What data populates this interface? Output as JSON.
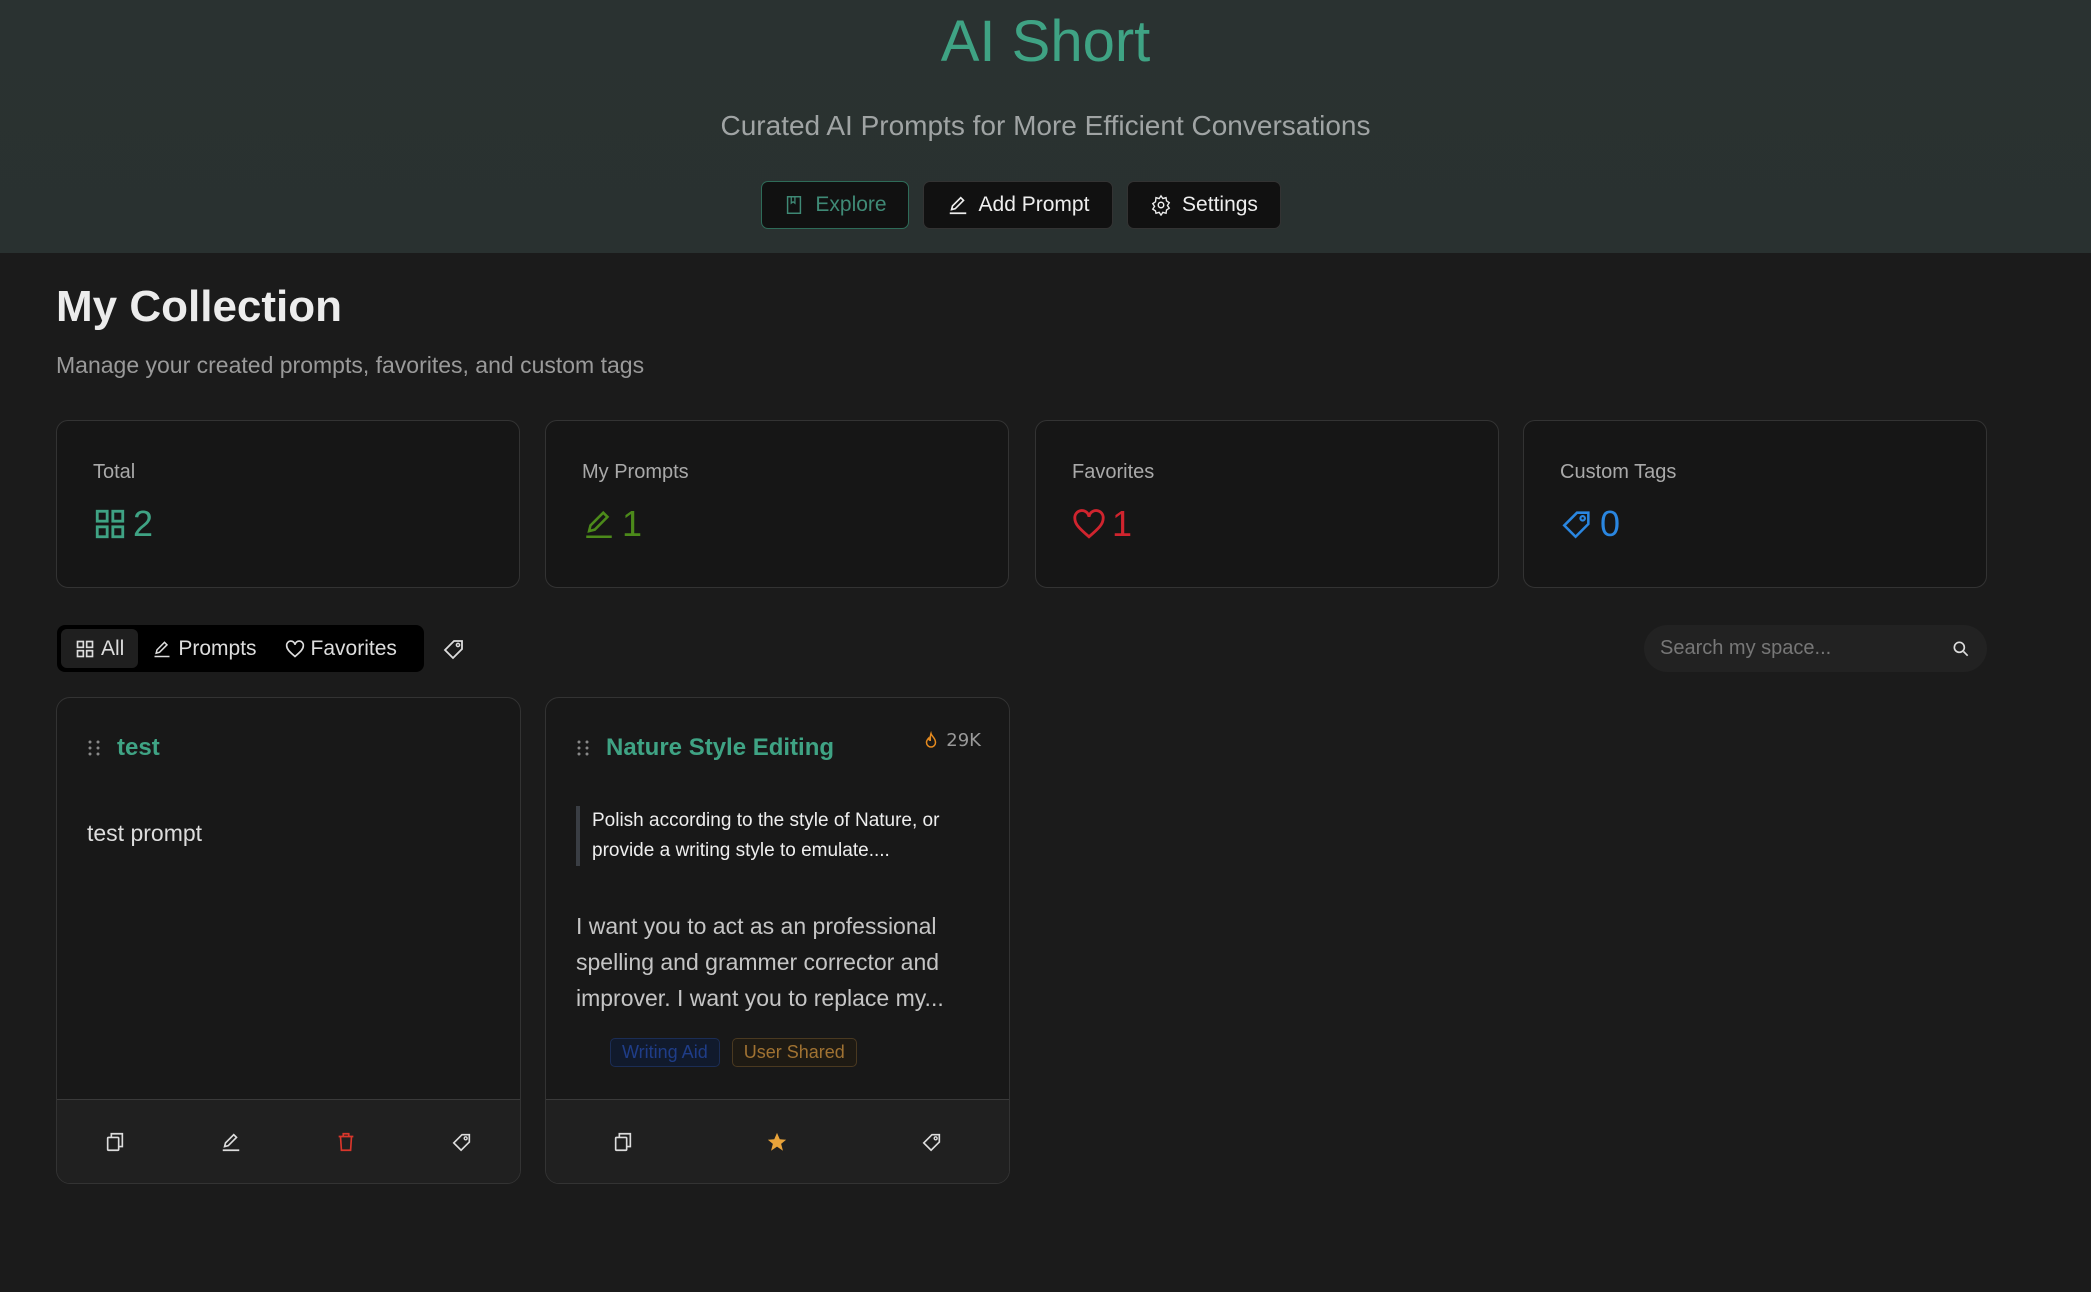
{
  "header": {
    "title": "AI Short",
    "subtitle": "Curated AI Prompts for More Efficient Conversations",
    "buttons": [
      {
        "label": "Explore",
        "icon": "book-icon"
      },
      {
        "label": "Add Prompt",
        "icon": "edit-icon"
      },
      {
        "label": "Settings",
        "icon": "gear-icon"
      }
    ]
  },
  "collection": {
    "title": "My Collection",
    "description": "Manage your created prompts, favorites, and custom tags"
  },
  "stats": [
    {
      "label": "Total",
      "value": "2",
      "icon": "grid-icon",
      "color": "#3fa384"
    },
    {
      "label": "My Prompts",
      "value": "1",
      "icon": "edit-icon",
      "color": "#4c8a1a"
    },
    {
      "label": "Favorites",
      "value": "1",
      "icon": "heart-icon",
      "color": "#d0242e"
    },
    {
      "label": "Custom Tags",
      "value": "0",
      "icon": "tag-icon",
      "color": "#2a86e0"
    }
  ],
  "filters": {
    "tabs": [
      {
        "label": "All",
        "active": true
      },
      {
        "label": "Prompts"
      },
      {
        "label": "Favorites"
      }
    ],
    "search_placeholder": "Search my space..."
  },
  "cards": [
    {
      "title": "test",
      "body": "test prompt"
    },
    {
      "title": "Nature Style Editing",
      "hot": "29K",
      "quote": "Polish according to the style of Nature, or provide a writing style to emulate....",
      "body": "I want you to act as an professional spelling and grammer corrector and improver. I want you to replace my...",
      "tags": [
        "Writing Aid",
        "User Shared"
      ]
    }
  ]
}
